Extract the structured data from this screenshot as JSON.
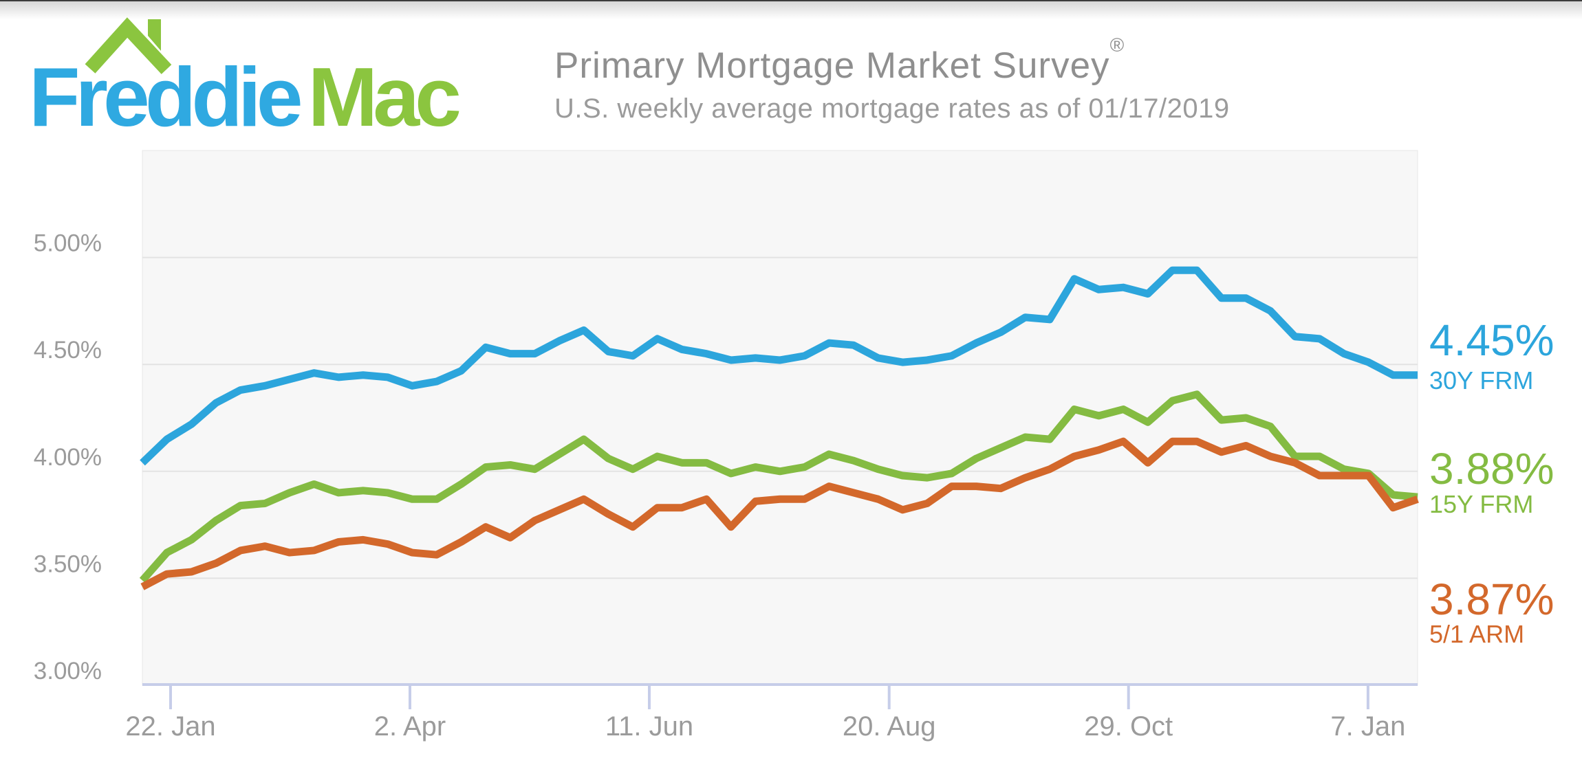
{
  "page": {
    "top_bar_color": "#3d3d3d",
    "background": "#ffffff"
  },
  "header": {
    "logo": {
      "word1": "Freddie",
      "word2": "Mac",
      "blue": "#2fa9e1",
      "green": "#8bc53f",
      "icon": "house-roof-with-chimney"
    },
    "title": "Primary Mortgage Market Survey",
    "registered_mark": "®",
    "subtitle": "U.S. weekly average mortgage rates as of 01/17/2019"
  },
  "chart_data": {
    "type": "line",
    "title": "Primary Mortgage Market Survey",
    "subtitle": "U.S. weekly average mortgage rates as of 01/17/2019",
    "xlabel": "",
    "ylabel": "",
    "ylim": [
      3.0,
      5.5
    ],
    "grid": "horizontal-only",
    "legend_position": "right-of-line-ends",
    "frequency": "weekly",
    "x_tick_labels": [
      "22. Jan",
      "2. Apr",
      "11. Jun",
      "20. Aug",
      "29. Oct",
      "7. Jan"
    ],
    "y_ticks": [
      {
        "label": "5.00%",
        "value": 5.0
      },
      {
        "label": "4.50%",
        "value": 4.5
      },
      {
        "label": "4.00%",
        "value": 4.0
      },
      {
        "label": "3.50%",
        "value": 3.5
      },
      {
        "label": "3.00%",
        "value": 3.0
      }
    ],
    "style": {
      "plot_background": "#f7f7f7",
      "plot_border": "#e7e7e7",
      "gridline_color": "#e3e3e3",
      "axis_line_color": "#c6cde9",
      "tick_color": "#c6cde9",
      "axis_label_color": "#9b9b9b"
    },
    "series": [
      {
        "name": "30Y FRM",
        "end_label": "4.45%",
        "color": "#2ca5dc",
        "values": [
          4.04,
          4.15,
          4.22,
          4.32,
          4.38,
          4.4,
          4.43,
          4.46,
          4.44,
          4.45,
          4.44,
          4.4,
          4.42,
          4.47,
          4.58,
          4.55,
          4.55,
          4.61,
          4.66,
          4.56,
          4.54,
          4.62,
          4.57,
          4.55,
          4.52,
          4.53,
          4.52,
          4.54,
          4.6,
          4.59,
          4.53,
          4.51,
          4.52,
          4.54,
          4.6,
          4.65,
          4.72,
          4.71,
          4.9,
          4.85,
          4.86,
          4.83,
          4.94,
          4.94,
          4.81,
          4.81,
          4.75,
          4.63,
          4.62,
          4.55,
          4.51,
          4.45,
          4.45
        ]
      },
      {
        "name": "15Y FRM",
        "end_label": "3.88%",
        "color": "#84bb42",
        "values": [
          3.49,
          3.62,
          3.68,
          3.77,
          3.84,
          3.85,
          3.9,
          3.94,
          3.9,
          3.91,
          3.9,
          3.87,
          3.87,
          3.94,
          4.02,
          4.03,
          4.01,
          4.08,
          4.15,
          4.06,
          4.01,
          4.07,
          4.04,
          4.04,
          3.99,
          4.02,
          4.0,
          4.02,
          4.08,
          4.05,
          4.01,
          3.98,
          3.97,
          3.99,
          4.06,
          4.11,
          4.16,
          4.15,
          4.29,
          4.26,
          4.29,
          4.23,
          4.33,
          4.36,
          4.24,
          4.25,
          4.21,
          4.07,
          4.07,
          4.01,
          3.99,
          3.89,
          3.88
        ]
      },
      {
        "name": "5/1 ARM",
        "end_label": "3.87%",
        "color": "#d3682b",
        "values": [
          3.46,
          3.52,
          3.53,
          3.57,
          3.63,
          3.65,
          3.62,
          3.63,
          3.67,
          3.68,
          3.66,
          3.62,
          3.61,
          3.67,
          3.74,
          3.69,
          3.77,
          3.82,
          3.87,
          3.8,
          3.74,
          3.83,
          3.83,
          3.87,
          3.74,
          3.86,
          3.87,
          3.87,
          3.93,
          3.9,
          3.87,
          3.82,
          3.85,
          3.93,
          3.93,
          3.92,
          3.97,
          4.01,
          4.07,
          4.1,
          4.14,
          4.04,
          4.14,
          4.14,
          4.09,
          4.12,
          4.07,
          4.04,
          3.98,
          3.98,
          3.98,
          3.83,
          3.87
        ]
      }
    ]
  }
}
